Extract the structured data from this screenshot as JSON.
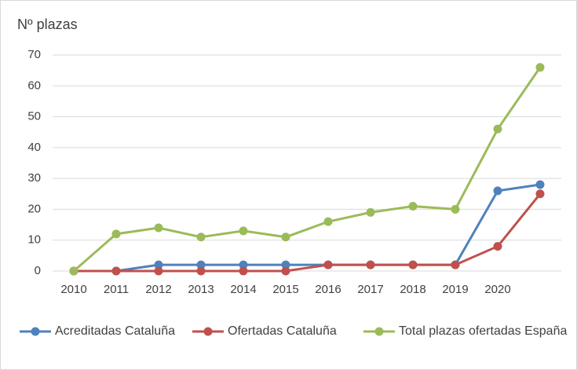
{
  "chart_data": {
    "type": "line",
    "y_label": "Nº plazas",
    "categories": [
      "2010",
      "2011",
      "2012",
      "2013",
      "2014",
      "2015",
      "2016",
      "2017",
      "2018",
      "2019",
      "2020",
      null
    ],
    "series": [
      {
        "name": "Acreditadas Cataluña",
        "color": "#4f81bd",
        "values": [
          0,
          0,
          2,
          2,
          2,
          2,
          2,
          2,
          2,
          2,
          26,
          28
        ]
      },
      {
        "name": "Ofertadas Cataluña",
        "color": "#c0504d",
        "values": [
          0,
          0,
          0,
          0,
          0,
          0,
          2,
          2,
          2,
          2,
          8,
          25
        ]
      },
      {
        "name": "Total plazas ofertadas España",
        "color": "#9bbb59",
        "values": [
          0,
          12,
          14,
          11,
          13,
          11,
          16,
          19,
          21,
          20,
          46,
          66
        ]
      }
    ],
    "ylim": [
      0,
      70
    ],
    "yticks": [
      0,
      10,
      20,
      30,
      40,
      50,
      60,
      70
    ],
    "grid": true,
    "legend": "bottom"
  }
}
